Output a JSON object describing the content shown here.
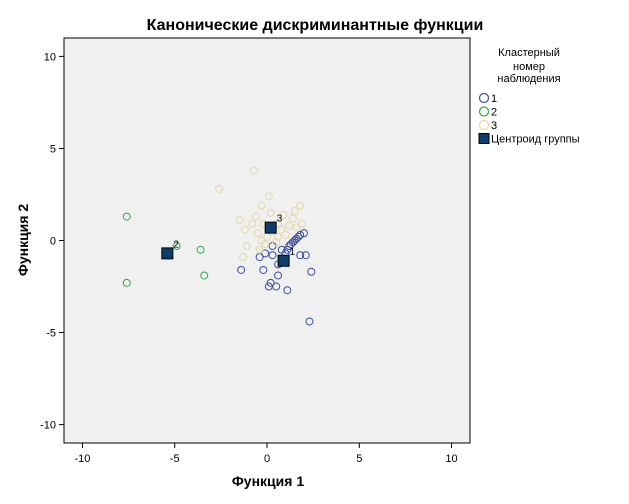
{
  "chart_data": {
    "type": "scatter",
    "title": "Канонические дискриминантные функции",
    "xlabel": "Функция 1",
    "ylabel": "Функция 2",
    "xlim": [
      -11,
      11
    ],
    "ylim": [
      -11,
      11
    ],
    "xticks": [
      -10,
      -5,
      0,
      5,
      10
    ],
    "yticks": [
      -10,
      -5,
      0,
      5,
      10
    ],
    "grid": false,
    "legend": {
      "title": "Кластерный номер наблюдения",
      "title_lines": [
        "Кластерный",
        "номер",
        "наблюдения"
      ],
      "placement": "top-right",
      "entries": [
        {
          "label": "1",
          "marker": "circle",
          "color": "#3b4fa3"
        },
        {
          "label": "2",
          "marker": "circle",
          "color": "#2fa84a"
        },
        {
          "label": "3",
          "marker": "circle",
          "color": "#e2d9a6"
        },
        {
          "label": "Центроид группы",
          "marker": "square",
          "color": "#0c3d6b"
        }
      ]
    },
    "series": [
      {
        "name": "1",
        "color": "#3b4fa3",
        "marker": "circle",
        "points": [
          [
            -0.4,
            -0.9
          ],
          [
            -0.2,
            -1.6
          ],
          [
            0.3,
            -0.8
          ],
          [
            0.6,
            -1.3
          ],
          [
            0.8,
            -0.5
          ],
          [
            1.0,
            -0.7
          ],
          [
            1.1,
            -0.5
          ],
          [
            1.2,
            -0.3
          ],
          [
            1.3,
            -0.2
          ],
          [
            1.4,
            -0.1
          ],
          [
            1.5,
            0.0
          ],
          [
            1.6,
            0.1
          ],
          [
            1.7,
            0.2
          ],
          [
            1.8,
            0.3
          ],
          [
            2.0,
            0.4
          ],
          [
            1.8,
            -0.8
          ],
          [
            2.1,
            -0.8
          ],
          [
            2.4,
            -1.7
          ],
          [
            0.6,
            -1.9
          ],
          [
            0.2,
            -2.3
          ],
          [
            0.1,
            -2.5
          ],
          [
            0.5,
            -2.5
          ],
          [
            1.1,
            -2.7
          ],
          [
            2.3,
            -4.4
          ],
          [
            -1.4,
            -1.6
          ],
          [
            0.3,
            -0.3
          ],
          [
            0.9,
            -1.0
          ],
          [
            -0.1,
            -0.7
          ]
        ]
      },
      {
        "name": "2",
        "color": "#2fa84a",
        "marker": "circle",
        "points": [
          [
            -7.6,
            1.3
          ],
          [
            -7.6,
            -2.3
          ],
          [
            -3.6,
            -0.5
          ],
          [
            -3.4,
            -1.9
          ],
          [
            -4.9,
            -0.3
          ]
        ]
      },
      {
        "name": "3",
        "color": "#e2d9a6",
        "marker": "circle",
        "points": [
          [
            -0.7,
            3.8
          ],
          [
            -2.6,
            2.8
          ],
          [
            0.1,
            2.4
          ],
          [
            -0.3,
            1.9
          ],
          [
            1.8,
            1.9
          ],
          [
            1.5,
            1.6
          ],
          [
            -0.6,
            1.3
          ],
          [
            -1.5,
            1.1
          ],
          [
            1.4,
            1.2
          ],
          [
            -1.2,
            0.6
          ],
          [
            -0.2,
            0.9
          ],
          [
            0.3,
            0.5
          ],
          [
            0.6,
            0.9
          ],
          [
            0.8,
            0.6
          ],
          [
            1.9,
            0.9
          ],
          [
            1.2,
            0.8
          ],
          [
            -0.5,
            0.4
          ],
          [
            0.0,
            0.2
          ],
          [
            -0.1,
            -0.2
          ],
          [
            0.6,
            0.2
          ],
          [
            -1.1,
            -0.3
          ],
          [
            -0.3,
            0.0
          ],
          [
            0.5,
            -0.1
          ],
          [
            -0.4,
            -0.5
          ],
          [
            1.0,
            0.3
          ],
          [
            0.9,
            1.4
          ],
          [
            -0.8,
            0.9
          ],
          [
            0.2,
            1.5
          ],
          [
            1.6,
            0.7
          ],
          [
            -1.3,
            -0.9
          ]
        ]
      }
    ],
    "centroids": [
      {
        "label": "1",
        "x": 0.9,
        "y": -1.1
      },
      {
        "label": "2",
        "x": -5.4,
        "y": -0.7
      },
      {
        "label": "3",
        "x": 0.2,
        "y": 0.7
      }
    ]
  }
}
